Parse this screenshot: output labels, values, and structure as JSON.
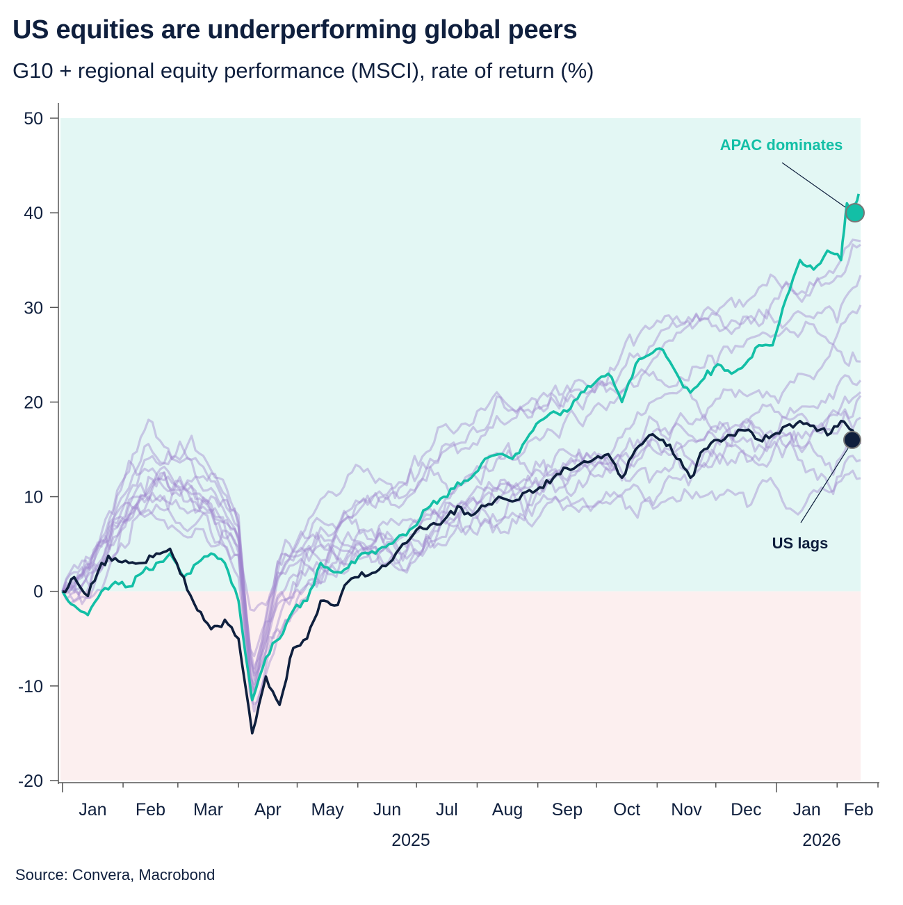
{
  "header": {
    "title": "US equities are underperforming global peers",
    "subtitle": "G10 + regional equity performance (MSCI), rate of return (%)"
  },
  "footer": {
    "source": "Source: Convera, Macrobond"
  },
  "chart_data": {
    "type": "line",
    "title": "US equities are underperforming global peers",
    "subtitle": "G10 + regional equity performance (MSCI), rate of return (%)",
    "xlabel": "",
    "ylabel": "",
    "ylim": [
      -20,
      50
    ],
    "yticks": [
      -20,
      -10,
      0,
      10,
      20,
      30,
      40,
      50
    ],
    "xlim": [
      "2024-12-31",
      "2026-02-13"
    ],
    "month_ticks": [
      "Jan",
      "Feb",
      "Mar",
      "Apr",
      "May",
      "Jun",
      "Jul",
      "Aug",
      "Sep",
      "Oct",
      "Nov",
      "Dec",
      "Jan",
      "Feb"
    ],
    "year_labels": [
      "2025",
      "2026"
    ],
    "grid": false,
    "background_bands": [
      {
        "from": 0,
        "to": 50,
        "color": "#e3f7f4"
      },
      {
        "from": -20,
        "to": 0,
        "color": "#fcefef"
      }
    ],
    "colors": {
      "apac": "#13bfa6",
      "us": "#0f1f3d",
      "peers": "#9e82cc",
      "text": "#0f1f3d",
      "axis": "#555555"
    },
    "series": [
      {
        "role": "highlight-apac",
        "points": [
          [
            "2025-01-01",
            0
          ],
          [
            "2025-01-07",
            -1.5
          ],
          [
            "2025-01-14",
            -2.5
          ],
          [
            "2025-01-21",
            0
          ],
          [
            "2025-01-28",
            1
          ],
          [
            "2025-02-04",
            0.5
          ],
          [
            "2025-02-11",
            2
          ],
          [
            "2025-02-18",
            3
          ],
          [
            "2025-02-25",
            4
          ],
          [
            "2025-03-04",
            1.5
          ],
          [
            "2025-03-11",
            3
          ],
          [
            "2025-03-18",
            4
          ],
          [
            "2025-03-25",
            3
          ],
          [
            "2025-04-01",
            -1
          ],
          [
            "2025-04-08",
            -11.5
          ],
          [
            "2025-04-15",
            -7
          ],
          [
            "2025-04-22",
            -5
          ],
          [
            "2025-04-29",
            -2
          ],
          [
            "2025-05-06",
            -1
          ],
          [
            "2025-05-13",
            3
          ],
          [
            "2025-05-20",
            2
          ],
          [
            "2025-05-27",
            2.5
          ],
          [
            "2025-06-03",
            4
          ],
          [
            "2025-06-10",
            4
          ],
          [
            "2025-06-17",
            5
          ],
          [
            "2025-06-24",
            6
          ],
          [
            "2025-07-01",
            7
          ],
          [
            "2025-07-08",
            9
          ],
          [
            "2025-07-15",
            10
          ],
          [
            "2025-07-22",
            11.5
          ],
          [
            "2025-07-29",
            12
          ],
          [
            "2025-08-05",
            14
          ],
          [
            "2025-08-12",
            14.5
          ],
          [
            "2025-08-19",
            14
          ],
          [
            "2025-08-26",
            16
          ],
          [
            "2025-09-02",
            18
          ],
          [
            "2025-09-09",
            19
          ],
          [
            "2025-09-16",
            19
          ],
          [
            "2025-09-23",
            21
          ],
          [
            "2025-09-30",
            22
          ],
          [
            "2025-10-07",
            23
          ],
          [
            "2025-10-14",
            20
          ],
          [
            "2025-10-21",
            24
          ],
          [
            "2025-10-28",
            25
          ],
          [
            "2025-11-04",
            25.5
          ],
          [
            "2025-11-11",
            23
          ],
          [
            "2025-11-18",
            21
          ],
          [
            "2025-11-25",
            22.5
          ],
          [
            "2025-12-02",
            24
          ],
          [
            "2025-12-09",
            23
          ],
          [
            "2025-12-16",
            24
          ],
          [
            "2025-12-23",
            26
          ],
          [
            "2025-12-30",
            26
          ],
          [
            "2026-01-06",
            31
          ],
          [
            "2026-01-13",
            35
          ],
          [
            "2026-01-20",
            34
          ],
          [
            "2026-01-27",
            36
          ],
          [
            "2026-02-03",
            35
          ],
          [
            "2026-02-06",
            41
          ],
          [
            "2026-02-09",
            40
          ],
          [
            "2026-02-12",
            42
          ]
        ]
      },
      {
        "role": "highlight-us",
        "points": [
          [
            "2025-01-01",
            0
          ],
          [
            "2025-01-07",
            1.5
          ],
          [
            "2025-01-14",
            -0.5
          ],
          [
            "2025-01-21",
            3
          ],
          [
            "2025-01-28",
            3.5
          ],
          [
            "2025-02-04",
            3
          ],
          [
            "2025-02-11",
            3
          ],
          [
            "2025-02-18",
            4
          ],
          [
            "2025-02-25",
            4.5
          ],
          [
            "2025-03-04",
            1.5
          ],
          [
            "2025-03-11",
            -2
          ],
          [
            "2025-03-18",
            -4
          ],
          [
            "2025-03-25",
            -3
          ],
          [
            "2025-04-01",
            -5
          ],
          [
            "2025-04-08",
            -15
          ],
          [
            "2025-04-15",
            -9
          ],
          [
            "2025-04-22",
            -12
          ],
          [
            "2025-04-29",
            -6
          ],
          [
            "2025-05-06",
            -5
          ],
          [
            "2025-05-13",
            -1
          ],
          [
            "2025-05-20",
            -1.5
          ],
          [
            "2025-05-27",
            1
          ],
          [
            "2025-06-03",
            2
          ],
          [
            "2025-06-10",
            2
          ],
          [
            "2025-06-17",
            3
          ],
          [
            "2025-06-24",
            5
          ],
          [
            "2025-07-01",
            6.5
          ],
          [
            "2025-07-08",
            7
          ],
          [
            "2025-07-15",
            7.5
          ],
          [
            "2025-07-22",
            9
          ],
          [
            "2025-07-29",
            8
          ],
          [
            "2025-08-05",
            9
          ],
          [
            "2025-08-12",
            10
          ],
          [
            "2025-08-19",
            9.5
          ],
          [
            "2025-08-26",
            10.5
          ],
          [
            "2025-09-02",
            11
          ],
          [
            "2025-09-09",
            12
          ],
          [
            "2025-09-16",
            13
          ],
          [
            "2025-09-23",
            13.5
          ],
          [
            "2025-09-30",
            14
          ],
          [
            "2025-10-07",
            14.5
          ],
          [
            "2025-10-14",
            12
          ],
          [
            "2025-10-21",
            15
          ],
          [
            "2025-10-28",
            16.5
          ],
          [
            "2025-11-04",
            16
          ],
          [
            "2025-11-11",
            14
          ],
          [
            "2025-11-18",
            12
          ],
          [
            "2025-11-25",
            15
          ],
          [
            "2025-12-02",
            16
          ],
          [
            "2025-12-09",
            16.5
          ],
          [
            "2025-12-16",
            17
          ],
          [
            "2025-12-23",
            16
          ],
          [
            "2025-12-30",
            16.5
          ],
          [
            "2026-01-06",
            17.5
          ],
          [
            "2026-01-13",
            18
          ],
          [
            "2026-01-20",
            17.5
          ],
          [
            "2026-01-27",
            16.5
          ],
          [
            "2026-02-03",
            18
          ],
          [
            "2026-02-09",
            17
          ],
          [
            "2026-02-13",
            16
          ]
        ]
      }
    ],
    "annotations": [
      {
        "text": "APAC dominates",
        "x": "2026-02-13",
        "y": 40,
        "color": "#13bfa6"
      },
      {
        "text": "US lags",
        "x": "2026-02-13",
        "y": 16,
        "color": "#0f1f3d"
      }
    ]
  }
}
